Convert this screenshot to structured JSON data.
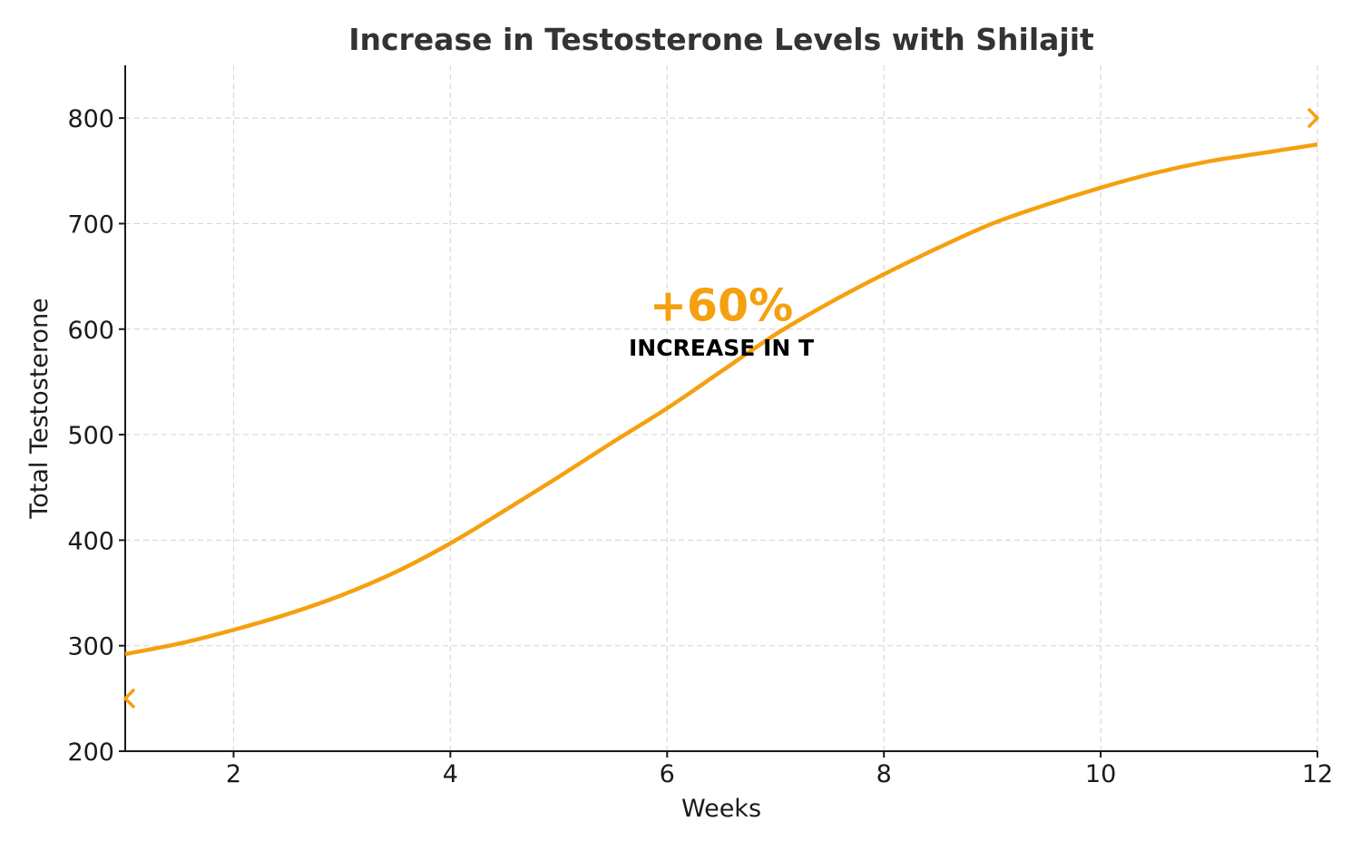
{
  "chart_data": {
    "type": "line",
    "title": "Increase in Testosterone Levels with Shilajit",
    "xlabel": "Weeks",
    "ylabel": "Total Testosterone",
    "xlim": [
      1,
      12
    ],
    "ylim": [
      200,
      850
    ],
    "xticks": [
      2,
      4,
      6,
      8,
      10,
      12
    ],
    "yticks": [
      200,
      300,
      400,
      500,
      600,
      700,
      800
    ],
    "grid": true,
    "series": [
      {
        "name": "Total Testosterone",
        "color": "#f5a00f",
        "x": [
          1,
          1.5,
          2,
          2.5,
          3,
          3.5,
          4,
          4.5,
          5,
          5.5,
          6,
          6.5,
          7,
          7.5,
          8,
          8.5,
          9,
          9.5,
          10,
          10.5,
          11,
          11.5,
          12
        ],
        "y": [
          292,
          302,
          315,
          330,
          348,
          370,
          397,
          428,
          460,
          493,
          525,
          560,
          595,
          625,
          652,
          677,
          700,
          718,
          734,
          748,
          759,
          767,
          775
        ]
      }
    ],
    "markers": [
      {
        "name": "start-marker",
        "x": 1,
        "y": 250,
        "symbol": "<"
      },
      {
        "name": "end-marker",
        "x": 12,
        "y": 800,
        "symbol": ">"
      }
    ],
    "annotations": [
      {
        "text": "+60%",
        "x": 6.5,
        "y": 608,
        "style": "big",
        "color": "#f5a00f"
      },
      {
        "text": "INCREASE IN T",
        "x": 6.5,
        "y": 575,
        "style": "small",
        "color": "#000000"
      }
    ]
  }
}
